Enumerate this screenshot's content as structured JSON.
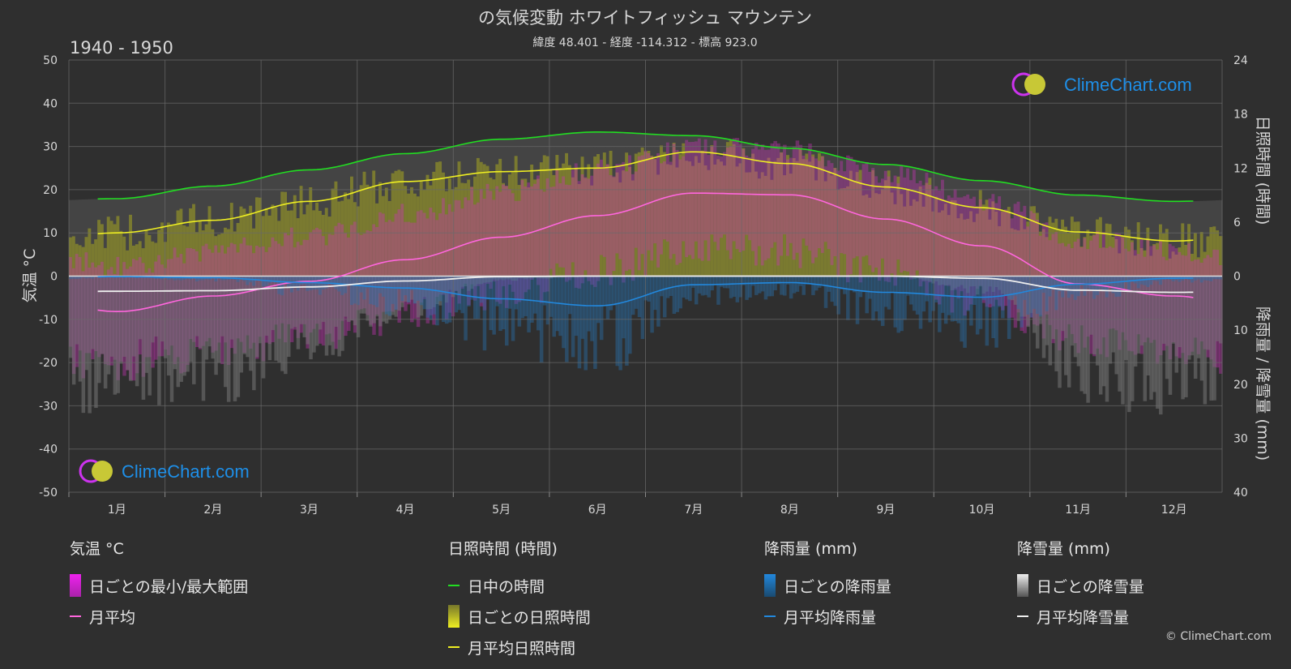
{
  "title": "の気候変動 ホワイトフィッシュ マウンテン",
  "subtitle": "緯度 48.401 - 経度 -114.312 - 標高 923.0",
  "period": "1940 - 1950",
  "brand": "ClimeChart.com",
  "copyright": "© ClimeChart.com",
  "colors": {
    "background": "#2f2f2f",
    "daylight": "#22dd22",
    "sunshine": "#eeee22",
    "temp_avg": "#ff66dd",
    "rain": "#2288dd",
    "snow": "#eeeeee",
    "brand_text": "#1e8fe8"
  },
  "legend": {
    "temp": {
      "header": "気温 °C",
      "range": "日ごとの最小/最大範囲",
      "avg": "月平均"
    },
    "sun": {
      "header": "日照時間 (時間)",
      "daylight": "日中の時間",
      "daily": "日ごとの日照時間",
      "avg": "月平均日照時間"
    },
    "rain": {
      "header": "降雨量 (mm)",
      "daily": "日ごとの降雨量",
      "avg": "月平均降雨量"
    },
    "snow": {
      "header": "降雪量 (mm)",
      "daily": "日ごとの降雪量",
      "avg": "月平均降雪量"
    }
  },
  "chart_data": {
    "type": "line",
    "months": [
      "1月",
      "2月",
      "3月",
      "4月",
      "5月",
      "6月",
      "7月",
      "8月",
      "9月",
      "10月",
      "11月",
      "12月"
    ],
    "axes": {
      "left": {
        "label": "気温 °C",
        "ylim": [
          -50,
          50
        ],
        "ticks": [
          50,
          40,
          30,
          20,
          10,
          0,
          -10,
          -20,
          -30,
          -40,
          -50
        ]
      },
      "right_top": {
        "label": "日照時間 (時間)",
        "ylim": [
          0,
          24
        ],
        "ticks": [
          24,
          18,
          12,
          6,
          0
        ]
      },
      "right_bottom": {
        "label": "降雨量 / 降雪量 (mm)",
        "ylim": [
          0,
          40
        ],
        "ticks": [
          10,
          20,
          30,
          40
        ]
      }
    },
    "grid": true,
    "series": [
      {
        "name": "日中の時間",
        "axis": "right_top",
        "values": [
          8.6,
          10.0,
          11.8,
          13.6,
          15.2,
          16.0,
          15.6,
          14.2,
          12.4,
          10.6,
          9.0,
          8.3
        ]
      },
      {
        "name": "月平均日照時間",
        "axis": "right_top",
        "values": [
          4.8,
          6.2,
          8.3,
          10.5,
          11.6,
          12.0,
          13.8,
          12.5,
          9.9,
          7.6,
          4.9,
          3.9
        ]
      },
      {
        "name": "月平均",
        "axis": "left",
        "values": [
          -8.2,
          -4.6,
          -1.2,
          3.8,
          9.0,
          14.0,
          19.2,
          18.8,
          13.2,
          7.0,
          -1.8,
          -4.6
        ]
      },
      {
        "name": "月平均降雨量",
        "axis": "right_bottom",
        "values": [
          0.1,
          0.3,
          1.2,
          2.2,
          4.2,
          5.5,
          1.6,
          1.2,
          3.0,
          3.9,
          1.5,
          0.4
        ]
      },
      {
        "name": "月平均降雪量",
        "axis": "right_bottom",
        "values": [
          2.8,
          2.7,
          2.0,
          0.9,
          0.1,
          0.0,
          0.0,
          0.0,
          0.0,
          0.4,
          2.6,
          3.0
        ]
      }
    ]
  }
}
